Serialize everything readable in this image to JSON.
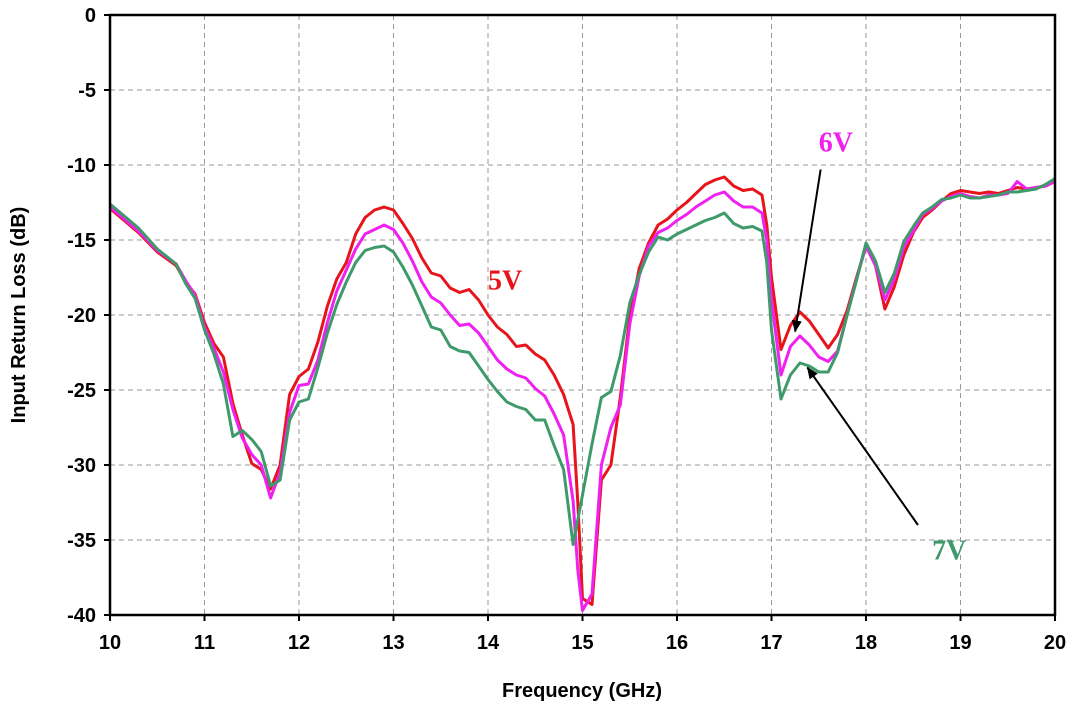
{
  "chart_data": {
    "type": "line",
    "xlabel": "Frequency (GHz)",
    "ylabel": "Input Return Loss (dB)",
    "xlim": [
      10,
      20
    ],
    "ylim": [
      -40,
      0
    ],
    "x_ticks": [
      "10",
      "11",
      "12",
      "13",
      "14",
      "15",
      "16",
      "17",
      "18",
      "19",
      "20"
    ],
    "y_ticks": [
      "0",
      "-5",
      "-10",
      "-15",
      "-20",
      "-25",
      "-30",
      "-35",
      "-40"
    ],
    "grid": true,
    "series": [
      {
        "name": "5V",
        "color": "#e8141c",
        "points": [
          [
            10.0,
            -12.9
          ],
          [
            10.3,
            -14.5
          ],
          [
            10.5,
            -15.8
          ],
          [
            10.7,
            -16.7
          ],
          [
            10.8,
            -17.8
          ],
          [
            10.9,
            -18.6
          ],
          [
            11.0,
            -20.5
          ],
          [
            11.1,
            -21.9
          ],
          [
            11.2,
            -22.8
          ],
          [
            11.3,
            -25.9
          ],
          [
            11.4,
            -28.0
          ],
          [
            11.5,
            -29.9
          ],
          [
            11.6,
            -30.3
          ],
          [
            11.7,
            -31.6
          ],
          [
            11.8,
            -30.0
          ],
          [
            11.9,
            -25.3
          ],
          [
            12.0,
            -24.1
          ],
          [
            12.1,
            -23.6
          ],
          [
            12.2,
            -21.8
          ],
          [
            12.3,
            -19.4
          ],
          [
            12.4,
            -17.6
          ],
          [
            12.5,
            -16.5
          ],
          [
            12.6,
            -14.6
          ],
          [
            12.7,
            -13.5
          ],
          [
            12.8,
            -13.0
          ],
          [
            12.9,
            -12.8
          ],
          [
            13.0,
            -13.0
          ],
          [
            13.1,
            -13.9
          ],
          [
            13.2,
            -14.9
          ],
          [
            13.3,
            -16.2
          ],
          [
            13.4,
            -17.2
          ],
          [
            13.5,
            -17.4
          ],
          [
            13.6,
            -18.2
          ],
          [
            13.7,
            -18.5
          ],
          [
            13.8,
            -18.3
          ],
          [
            13.9,
            -19.0
          ],
          [
            14.0,
            -20.0
          ],
          [
            14.1,
            -20.8
          ],
          [
            14.2,
            -21.3
          ],
          [
            14.3,
            -22.1
          ],
          [
            14.4,
            -22.0
          ],
          [
            14.5,
            -22.6
          ],
          [
            14.6,
            -23.0
          ],
          [
            14.7,
            -24.0
          ],
          [
            14.8,
            -25.3
          ],
          [
            14.9,
            -27.3
          ],
          [
            14.95,
            -32.5
          ],
          [
            15.0,
            -38.9
          ],
          [
            15.1,
            -39.3
          ],
          [
            15.2,
            -31.0
          ],
          [
            15.3,
            -30.0
          ],
          [
            15.4,
            -25.5
          ],
          [
            15.5,
            -20.1
          ],
          [
            15.6,
            -16.9
          ],
          [
            15.7,
            -15.2
          ],
          [
            15.8,
            -14.0
          ],
          [
            15.9,
            -13.6
          ],
          [
            16.0,
            -13.0
          ],
          [
            16.1,
            -12.5
          ],
          [
            16.2,
            -11.9
          ],
          [
            16.3,
            -11.3
          ],
          [
            16.4,
            -11.0
          ],
          [
            16.5,
            -10.8
          ],
          [
            16.6,
            -11.4
          ],
          [
            16.7,
            -11.7
          ],
          [
            16.8,
            -11.6
          ],
          [
            16.9,
            -12.0
          ],
          [
            16.95,
            -14.0
          ],
          [
            17.0,
            -17.5
          ],
          [
            17.1,
            -22.3
          ],
          [
            17.2,
            -20.7
          ],
          [
            17.3,
            -19.8
          ],
          [
            17.4,
            -20.4
          ],
          [
            17.5,
            -21.3
          ],
          [
            17.6,
            -22.2
          ],
          [
            17.7,
            -21.3
          ],
          [
            17.8,
            -19.7
          ],
          [
            17.9,
            -17.5
          ],
          [
            18.0,
            -15.4
          ],
          [
            18.1,
            -16.7
          ],
          [
            18.2,
            -19.6
          ],
          [
            18.3,
            -18.1
          ],
          [
            18.4,
            -16.0
          ],
          [
            18.5,
            -14.5
          ],
          [
            18.6,
            -13.5
          ],
          [
            18.7,
            -13.0
          ],
          [
            18.8,
            -12.4
          ],
          [
            18.9,
            -11.9
          ],
          [
            19.0,
            -11.7
          ],
          [
            19.1,
            -11.8
          ],
          [
            19.2,
            -11.9
          ],
          [
            19.3,
            -11.8
          ],
          [
            19.4,
            -11.9
          ],
          [
            19.5,
            -11.7
          ],
          [
            19.6,
            -11.5
          ],
          [
            19.7,
            -11.6
          ],
          [
            19.8,
            -11.5
          ],
          [
            19.9,
            -11.4
          ],
          [
            20.0,
            -11.1
          ]
        ]
      },
      {
        "name": "6V",
        "color": "#f020f0",
        "points": [
          [
            10.0,
            -12.8
          ],
          [
            10.3,
            -14.4
          ],
          [
            10.5,
            -15.7
          ],
          [
            10.7,
            -16.6
          ],
          [
            10.8,
            -17.7
          ],
          [
            10.9,
            -18.7
          ],
          [
            11.0,
            -20.8
          ],
          [
            11.1,
            -22.2
          ],
          [
            11.2,
            -23.8
          ],
          [
            11.3,
            -26.3
          ],
          [
            11.4,
            -28.2
          ],
          [
            11.5,
            -29.3
          ],
          [
            11.6,
            -30.0
          ],
          [
            11.7,
            -32.2
          ],
          [
            11.8,
            -30.5
          ],
          [
            11.9,
            -26.5
          ],
          [
            12.0,
            -24.7
          ],
          [
            12.1,
            -24.6
          ],
          [
            12.2,
            -23.0
          ],
          [
            12.3,
            -20.5
          ],
          [
            12.4,
            -18.4
          ],
          [
            12.5,
            -17.0
          ],
          [
            12.6,
            -15.6
          ],
          [
            12.7,
            -14.6
          ],
          [
            12.8,
            -14.3
          ],
          [
            12.9,
            -14.0
          ],
          [
            13.0,
            -14.3
          ],
          [
            13.1,
            -15.2
          ],
          [
            13.2,
            -16.4
          ],
          [
            13.3,
            -17.8
          ],
          [
            13.4,
            -18.8
          ],
          [
            13.5,
            -19.2
          ],
          [
            13.6,
            -20.0
          ],
          [
            13.7,
            -20.7
          ],
          [
            13.8,
            -20.6
          ],
          [
            13.9,
            -21.2
          ],
          [
            14.0,
            -22.1
          ],
          [
            14.1,
            -23.0
          ],
          [
            14.2,
            -23.6
          ],
          [
            14.3,
            -24.0
          ],
          [
            14.4,
            -24.2
          ],
          [
            14.5,
            -24.9
          ],
          [
            14.6,
            -25.4
          ],
          [
            14.7,
            -26.6
          ],
          [
            14.8,
            -28.0
          ],
          [
            14.9,
            -32.4
          ],
          [
            14.95,
            -37.0
          ],
          [
            15.0,
            -39.7
          ],
          [
            15.1,
            -38.6
          ],
          [
            15.2,
            -30.0
          ],
          [
            15.3,
            -27.5
          ],
          [
            15.4,
            -26.0
          ],
          [
            15.5,
            -20.6
          ],
          [
            15.6,
            -17.4
          ],
          [
            15.7,
            -15.4
          ],
          [
            15.8,
            -14.5
          ],
          [
            15.9,
            -14.2
          ],
          [
            16.0,
            -13.7
          ],
          [
            16.1,
            -13.3
          ],
          [
            16.2,
            -12.8
          ],
          [
            16.3,
            -12.4
          ],
          [
            16.4,
            -12.0
          ],
          [
            16.5,
            -11.8
          ],
          [
            16.6,
            -12.4
          ],
          [
            16.7,
            -12.8
          ],
          [
            16.8,
            -12.8
          ],
          [
            16.9,
            -13.2
          ],
          [
            16.95,
            -15.0
          ],
          [
            17.0,
            -19.0
          ],
          [
            17.1,
            -24.0
          ],
          [
            17.2,
            -22.1
          ],
          [
            17.3,
            -21.4
          ],
          [
            17.4,
            -22.0
          ],
          [
            17.5,
            -22.8
          ],
          [
            17.6,
            -23.1
          ],
          [
            17.7,
            -22.4
          ],
          [
            17.8,
            -20.0
          ],
          [
            17.9,
            -17.6
          ],
          [
            18.0,
            -15.4
          ],
          [
            18.1,
            -16.7
          ],
          [
            18.2,
            -19.0
          ],
          [
            18.3,
            -17.6
          ],
          [
            18.4,
            -15.5
          ],
          [
            18.5,
            -14.4
          ],
          [
            18.6,
            -13.3
          ],
          [
            18.7,
            -12.9
          ],
          [
            18.8,
            -12.4
          ],
          [
            18.9,
            -12.1
          ],
          [
            19.0,
            -11.9
          ],
          [
            19.1,
            -12.1
          ],
          [
            19.2,
            -12.2
          ],
          [
            19.3,
            -12.0
          ],
          [
            19.4,
            -12.0
          ],
          [
            19.5,
            -11.9
          ],
          [
            19.6,
            -11.1
          ],
          [
            19.7,
            -11.6
          ],
          [
            19.8,
            -11.5
          ],
          [
            19.9,
            -11.4
          ],
          [
            20.0,
            -11.1
          ]
        ]
      },
      {
        "name": "7V",
        "color": "#3e9a6a",
        "points": [
          [
            10.0,
            -12.6
          ],
          [
            10.3,
            -14.2
          ],
          [
            10.5,
            -15.6
          ],
          [
            10.7,
            -16.6
          ],
          [
            10.8,
            -17.9
          ],
          [
            10.9,
            -18.9
          ],
          [
            11.0,
            -21.0
          ],
          [
            11.1,
            -22.6
          ],
          [
            11.2,
            -24.6
          ],
          [
            11.3,
            -28.1
          ],
          [
            11.4,
            -27.7
          ],
          [
            11.5,
            -28.3
          ],
          [
            11.6,
            -29.1
          ],
          [
            11.7,
            -31.4
          ],
          [
            11.8,
            -31.0
          ],
          [
            11.9,
            -27.0
          ],
          [
            12.0,
            -25.8
          ],
          [
            12.1,
            -25.6
          ],
          [
            12.2,
            -23.5
          ],
          [
            12.3,
            -21.2
          ],
          [
            12.4,
            -19.3
          ],
          [
            12.5,
            -17.8
          ],
          [
            12.6,
            -16.5
          ],
          [
            12.7,
            -15.7
          ],
          [
            12.8,
            -15.5
          ],
          [
            12.9,
            -15.4
          ],
          [
            13.0,
            -15.8
          ],
          [
            13.1,
            -16.8
          ],
          [
            13.2,
            -18.0
          ],
          [
            13.3,
            -19.4
          ],
          [
            13.4,
            -20.8
          ],
          [
            13.5,
            -21.0
          ],
          [
            13.6,
            -22.1
          ],
          [
            13.7,
            -22.4
          ],
          [
            13.8,
            -22.5
          ],
          [
            13.9,
            -23.4
          ],
          [
            14.0,
            -24.3
          ],
          [
            14.1,
            -25.1
          ],
          [
            14.2,
            -25.8
          ],
          [
            14.3,
            -26.1
          ],
          [
            14.4,
            -26.3
          ],
          [
            14.5,
            -27.0
          ],
          [
            14.6,
            -27.0
          ],
          [
            14.7,
            -28.7
          ],
          [
            14.8,
            -30.3
          ],
          [
            14.9,
            -35.3
          ],
          [
            15.0,
            -32.0
          ],
          [
            15.1,
            -28.6
          ],
          [
            15.2,
            -25.5
          ],
          [
            15.3,
            -25.1
          ],
          [
            15.4,
            -22.7
          ],
          [
            15.5,
            -19.2
          ],
          [
            15.6,
            -17.3
          ],
          [
            15.7,
            -15.8
          ],
          [
            15.8,
            -14.8
          ],
          [
            15.9,
            -15.0
          ],
          [
            16.0,
            -14.6
          ],
          [
            16.1,
            -14.3
          ],
          [
            16.2,
            -14.0
          ],
          [
            16.3,
            -13.7
          ],
          [
            16.4,
            -13.5
          ],
          [
            16.5,
            -13.2
          ],
          [
            16.6,
            -13.9
          ],
          [
            16.7,
            -14.2
          ],
          [
            16.8,
            -14.1
          ],
          [
            16.9,
            -14.4
          ],
          [
            16.95,
            -16.5
          ],
          [
            17.0,
            -21.0
          ],
          [
            17.1,
            -25.6
          ],
          [
            17.2,
            -24.0
          ],
          [
            17.3,
            -23.2
          ],
          [
            17.4,
            -23.4
          ],
          [
            17.5,
            -23.8
          ],
          [
            17.6,
            -23.8
          ],
          [
            17.7,
            -22.5
          ],
          [
            17.8,
            -20.0
          ],
          [
            17.9,
            -17.7
          ],
          [
            18.0,
            -15.2
          ],
          [
            18.1,
            -16.4
          ],
          [
            18.2,
            -18.5
          ],
          [
            18.3,
            -17.2
          ],
          [
            18.4,
            -15.1
          ],
          [
            18.5,
            -14.1
          ],
          [
            18.6,
            -13.2
          ],
          [
            18.7,
            -12.8
          ],
          [
            18.8,
            -12.3
          ],
          [
            18.9,
            -12.2
          ],
          [
            19.0,
            -12.0
          ],
          [
            19.1,
            -12.2
          ],
          [
            19.2,
            -12.2
          ],
          [
            19.3,
            -12.1
          ],
          [
            19.4,
            -12.0
          ],
          [
            19.5,
            -11.8
          ],
          [
            19.6,
            -11.8
          ],
          [
            19.7,
            -11.7
          ],
          [
            19.8,
            -11.6
          ],
          [
            19.9,
            -11.3
          ],
          [
            20.0,
            -10.9
          ]
        ]
      }
    ],
    "annotations": [
      {
        "text": "5V",
        "color": "#e8141c",
        "x": 14.0,
        "y": -18.3
      },
      {
        "text": "6V",
        "color": "#f020f0",
        "x": 17.5,
        "y": -9.1,
        "arrow_to": [
          17.25,
          -21.1
        ],
        "arrow_from": [
          17.52,
          -10.3
        ]
      },
      {
        "text": "7V",
        "color": "#3e9a6a",
        "x": 18.7,
        "y": -36.3,
        "arrow_from": [
          18.55,
          -34.0
        ],
        "arrow_to": [
          17.38,
          -23.5
        ]
      }
    ]
  }
}
